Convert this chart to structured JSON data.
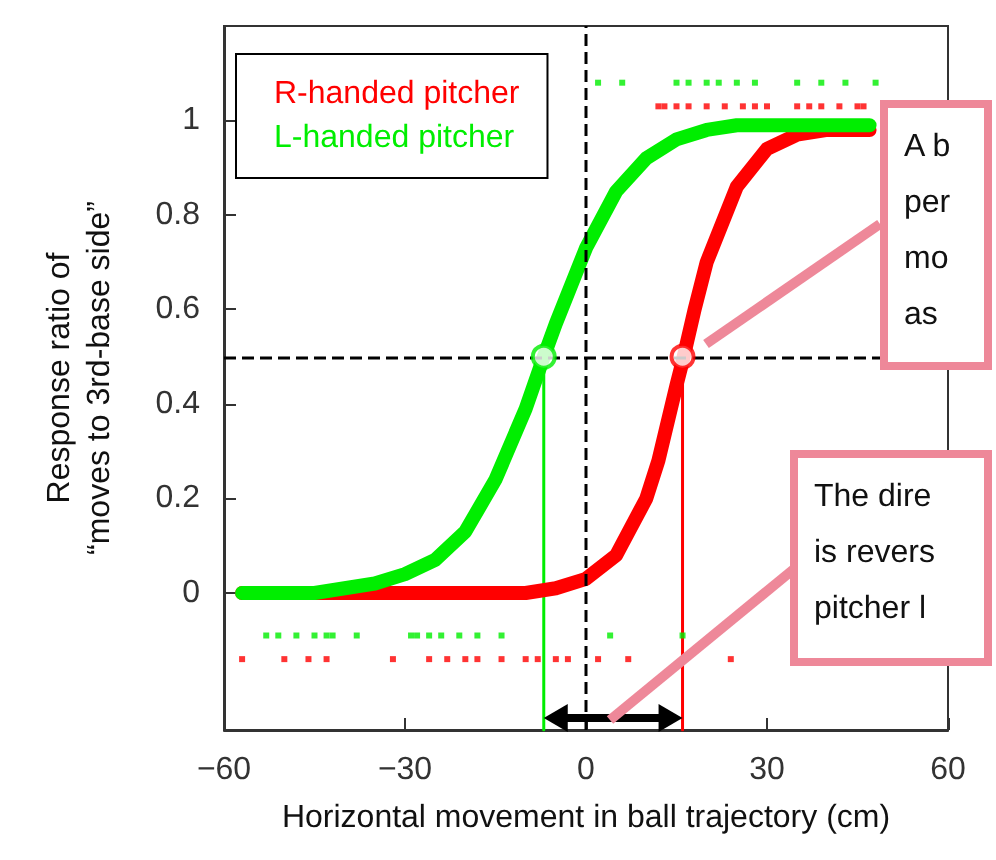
{
  "chart_data": {
    "type": "line",
    "xlabel": "Horizontal movement in ball trajectory (cm)",
    "ylabel": "Response ratio of\n“moves to 3rd-base side”",
    "xlim": [
      -60,
      60
    ],
    "ylim": [
      -0.29,
      1.2
    ],
    "xticks": [
      {
        "value": -60,
        "label": "−60"
      },
      {
        "value": -30,
        "label": "−30"
      },
      0,
      30,
      60
    ],
    "yticks": [
      0,
      0.2,
      0.4,
      0.6,
      0.8,
      1
    ],
    "grid": false,
    "legend": "top left",
    "marker": "none",
    "line_style": "solid",
    "series": [
      {
        "name": "R-handed pitcher",
        "color": "#ff0000",
        "x": [
          -57,
          -50,
          -40,
          -30,
          -20,
          -10,
          -5,
          0,
          5,
          10,
          12,
          15,
          16,
          18,
          20,
          25,
          30,
          35,
          40,
          47
        ],
        "values": [
          0,
          0,
          0,
          0,
          0,
          0,
          0.01,
          0.03,
          0.08,
          0.2,
          0.28,
          0.44,
          0.49,
          0.6,
          0.7,
          0.86,
          0.94,
          0.97,
          0.98,
          0.98
        ]
      },
      {
        "name": "L-handed pitcher",
        "color": "#00ee00",
        "x": [
          -57,
          -50,
          -45,
          -40,
          -35,
          -30,
          -25,
          -20,
          -15,
          -10,
          -7,
          -5,
          0,
          5,
          10,
          15,
          20,
          25,
          30,
          35,
          40,
          47
        ],
        "values": [
          0,
          0,
          0,
          0.01,
          0.02,
          0.04,
          0.07,
          0.13,
          0.24,
          0.39,
          0.5,
          0.57,
          0.73,
          0.85,
          0.92,
          0.96,
          0.98,
          0.99,
          0.99,
          0.99,
          0.99,
          0.99
        ]
      },
      {
        "type": "scatter",
        "marker": "square",
        "color": "#00ee00",
        "x": [
          2,
          6,
          15,
          17,
          20,
          22,
          25,
          28,
          35,
          39,
          43,
          48
        ],
        "values": [
          1.08,
          1.08,
          1.08,
          1.08,
          1.08,
          1.08,
          1.08,
          1.08,
          1.08,
          1.08,
          1.08,
          1.08
        ]
      },
      {
        "type": "scatter",
        "marker": "square",
        "color": "#ff0000",
        "x": [
          12,
          13,
          15,
          17,
          20,
          23,
          26,
          28,
          30,
          35,
          37,
          39,
          42,
          45,
          46
        ],
        "values": [
          1.03,
          1.03,
          1.03,
          1.03,
          1.03,
          1.03,
          1.03,
          1.03,
          1.03,
          1.03,
          1.03,
          1.03,
          1.03,
          1.03,
          1.03
        ]
      },
      {
        "type": "scatter",
        "marker": "square",
        "color": "#00ee00",
        "x": [
          -53,
          -51,
          -48,
          -45,
          -43,
          -42,
          -38,
          -29,
          -28,
          -26,
          -24,
          -21,
          -18,
          -14,
          4,
          16
        ],
        "values": [
          -0.09,
          -0.09,
          -0.09,
          -0.09,
          -0.09,
          -0.09,
          -0.09,
          -0.09,
          -0.09,
          -0.09,
          -0.09,
          -0.09,
          -0.09,
          -0.09,
          -0.09,
          -0.09
        ]
      },
      {
        "type": "scatter",
        "marker": "square",
        "color": "#ff0000",
        "x": [
          -57,
          -50,
          -46,
          -43,
          -32,
          -26,
          -23,
          -20,
          -18,
          -14,
          -10,
          -8,
          -5,
          -3,
          2,
          7,
          24
        ],
        "values": [
          -0.14,
          -0.14,
          -0.14,
          -0.14,
          -0.14,
          -0.14,
          -0.14,
          -0.14,
          -0.14,
          -0.14,
          -0.14,
          -0.14,
          -0.14,
          -0.14,
          -0.14,
          -0.14,
          -0.14
        ]
      },
      {
        "type": "line",
        "color": "#00ee00",
        "x": [
          -7,
          -7
        ],
        "values": [
          -0.29,
          0.5
        ]
      },
      {
        "type": "line",
        "color": "#ff0000",
        "x": [
          16,
          16
        ],
        "values": [
          -0.29,
          0.5
        ]
      },
      {
        "type": "scatter",
        "marker": "circle",
        "color": "#00ee00",
        "x": [
          -7
        ],
        "values": [
          0.5
        ]
      },
      {
        "type": "scatter",
        "marker": "circle",
        "color": "#ff0000",
        "x": [
          16
        ],
        "values": [
          0.5
        ]
      }
    ],
    "ref_lines": [
      {
        "axis": "x",
        "value": 0,
        "color": "#000000",
        "line_style": "dashed"
      },
      {
        "axis": "y",
        "value": 0.5,
        "color": "#000000",
        "line_style": "dashed"
      }
    ],
    "annotations": [
      "A b\nper\nmo\nas",
      "The dire\nis revers\npitcher l"
    ]
  }
}
